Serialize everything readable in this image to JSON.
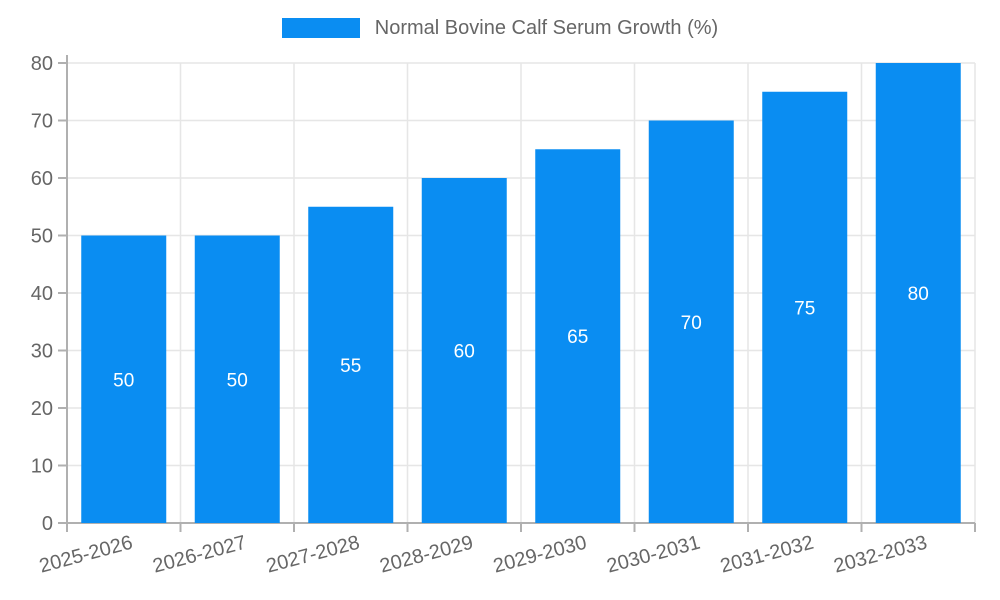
{
  "chart_data": {
    "type": "bar",
    "title": "Normal Bovine Calf Serum Growth (%)",
    "categories": [
      "2025-2026",
      "2026-2027",
      "2027-2028",
      "2028-2029",
      "2029-2030",
      "2030-2031",
      "2031-2032",
      "2032-2033"
    ],
    "values": [
      50,
      50,
      55,
      60,
      65,
      70,
      75,
      80
    ],
    "xlabel": "",
    "ylabel": "",
    "ylim": [
      0,
      80
    ],
    "ytick_step": 10,
    "grid": true,
    "legend_position": "top",
    "bar_value_labels_inside": true
  },
  "colors": {
    "bar": "#0a8df2",
    "bar_value_label": "#ffffff",
    "grid": "#e6e6e6",
    "axis": "#b0b0b0",
    "tick_text": "#666666",
    "legend_text": "#666666",
    "background": "#ffffff"
  }
}
